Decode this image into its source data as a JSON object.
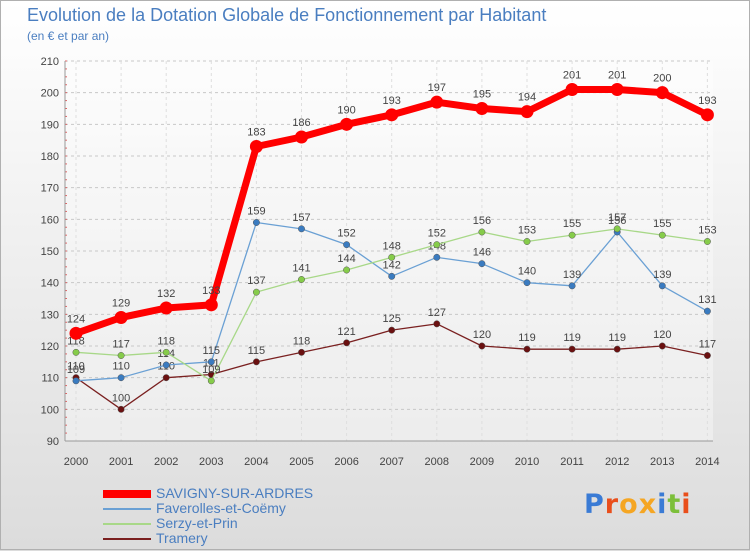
{
  "title": "Evolution de la Dotation Globale de Fonctionnement par Habitant",
  "subtitle": "(en € et par an)",
  "logo": {
    "text": "Proxiti",
    "colors": [
      "#3a7bd5",
      "#e94e1b",
      "#f5a623",
      "#f5a623",
      "#3a7bd5",
      "#7cbf3a",
      "#e94e1b"
    ]
  },
  "chart_data": {
    "type": "line",
    "title": "Evolution de la Dotation Globale de Fonctionnement par Habitant",
    "xlabel": "",
    "ylabel": "",
    "ylim": [
      90,
      210
    ],
    "yticks": [
      90,
      100,
      110,
      120,
      130,
      140,
      150,
      160,
      170,
      180,
      190,
      200,
      210
    ],
    "categories": [
      "2000",
      "2001",
      "2002",
      "2003",
      "2004",
      "2005",
      "2006",
      "2007",
      "2008",
      "2009",
      "2010",
      "2011",
      "2012",
      "2013",
      "2014"
    ],
    "series": [
      {
        "name": "Tramery",
        "color": "#7a2020",
        "marker_color": "#6a1010",
        "values": [
          110,
          100,
          110,
          111,
          115,
          118,
          121,
          125,
          127,
          120,
          119,
          119,
          119,
          120,
          117
        ]
      },
      {
        "name": "Faverolles-et-Coëmy",
        "color": "#6aa0d4",
        "marker_color": "#3a7bc0",
        "values": [
          109,
          110,
          114,
          115,
          159,
          157,
          152,
          142,
          148,
          146,
          140,
          139,
          156,
          139,
          131
        ]
      },
      {
        "name": "Serzy-et-Prin",
        "color": "#a8d888",
        "marker_color": "#86cc4a",
        "values": [
          118,
          117,
          118,
          109,
          137,
          141,
          144,
          148,
          152,
          156,
          153,
          155,
          157,
          155,
          153
        ]
      },
      {
        "name": "SAVIGNY-SUR-ARDRES",
        "color": "#ff0000",
        "marker_color": "#ff0000",
        "values": [
          124,
          129,
          132,
          133,
          183,
          186,
          190,
          193,
          197,
          195,
          194,
          201,
          201,
          200,
          193
        ]
      }
    ],
    "legend": [
      "SAVIGNY-SUR-ARDRES",
      "Faverolles-et-Coëmy",
      "Serzy-et-Prin",
      "Tramery"
    ]
  }
}
